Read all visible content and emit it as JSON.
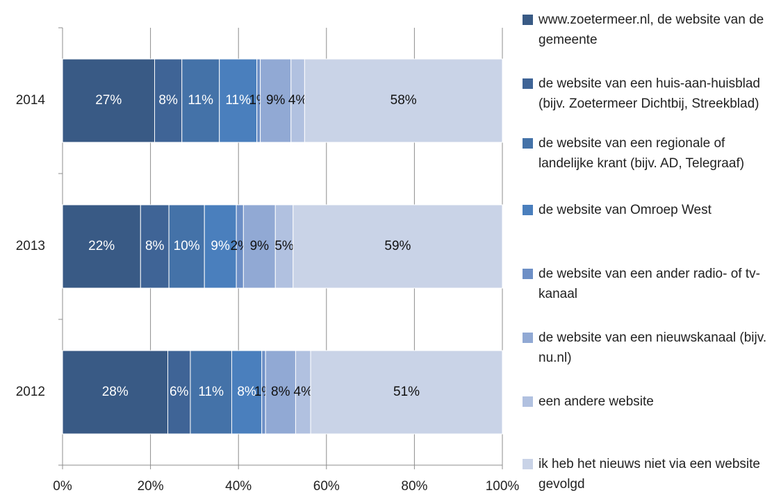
{
  "chart_data": {
    "type": "bar",
    "orientation": "horizontal",
    "stack": "percent",
    "categories": [
      "2014",
      "2013",
      "2012"
    ],
    "xlim": [
      0,
      100
    ],
    "xticks": [
      {
        "value": 0,
        "label": "0%"
      },
      {
        "value": 20,
        "label": "20%"
      },
      {
        "value": 40,
        "label": "40%"
      },
      {
        "value": 60,
        "label": "60%"
      },
      {
        "value": 80,
        "label": "80%"
      },
      {
        "value": 100,
        "label": "100%"
      }
    ],
    "grid": true,
    "legend": "right",
    "series": [
      {
        "name": "www.zoetermeer.nl, de website van de gemeente",
        "color": "#395a85",
        "values": [
          27,
          22,
          28
        ],
        "value_labels": [
          "27%",
          "22%",
          "28%"
        ]
      },
      {
        "name": "de website van een huis-aan-huisblad (bijv. Zoetermeer Dichtbij, Streekblad)",
        "color": "#3f6496",
        "values": [
          8,
          8,
          6
        ],
        "value_labels": [
          "8%",
          "8%",
          "6%"
        ]
      },
      {
        "name": "de website van een regionale of landelijke krant  (bijv. AD, Telegraaf)",
        "color": "#4472a8",
        "values": [
          11,
          10,
          11
        ],
        "value_labels": [
          "11%",
          "10%",
          "11%"
        ]
      },
      {
        "name": "de website van Omroep West",
        "color": "#4a7fbd",
        "values": [
          11,
          9,
          8
        ],
        "value_labels": [
          "11%",
          "9%",
          "8%"
        ]
      },
      {
        "name": "de website van een ander radio- of tv-kanaal",
        "color": "#6d8fc6",
        "values": [
          1,
          2,
          1
        ],
        "value_labels": [
          "1%",
          "2%",
          "1%"
        ]
      },
      {
        "name": "de website van een nieuwskanaal   (bijv. nu.nl)",
        "color": "#91a9d4",
        "values": [
          9,
          9,
          8
        ],
        "value_labels": [
          "9%",
          "9%",
          "8%"
        ]
      },
      {
        "name": "een andere website",
        "color": "#b1c1e0",
        "values": [
          4,
          5,
          4
        ],
        "value_labels": [
          "4%",
          "5%",
          "4%"
        ]
      },
      {
        "name": "ik heb het nieuws niet via een website gevolgd",
        "color": "#c9d3e7",
        "values": [
          58,
          59,
          51
        ],
        "value_labels": [
          "58%",
          "59%",
          "51%"
        ]
      }
    ]
  }
}
